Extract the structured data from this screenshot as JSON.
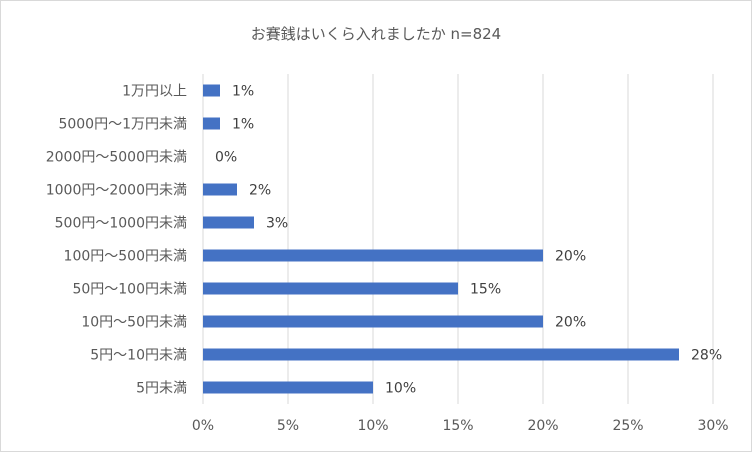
{
  "chart_data": {
    "type": "bar",
    "orientation": "horizontal",
    "title": "お賽銭はいくら入れましたか n=824",
    "categories": [
      "1万円以上",
      "5000円～1万円未満",
      "2000円～5000円未満",
      "1000円～2000円未満",
      "500円～1000円未満",
      "100円～500円未満",
      "50円～100円未満",
      "10円～50円未満",
      "5円～10円未満",
      "5円未満"
    ],
    "values": [
      1,
      1,
      0,
      2,
      3,
      20,
      15,
      20,
      28,
      10
    ],
    "data_labels": [
      "1%",
      "1%",
      "0%",
      "2%",
      "3%",
      "20%",
      "15%",
      "20%",
      "28%",
      "10%"
    ],
    "x_ticks": [
      "0%",
      "5%",
      "10%",
      "15%",
      "20%",
      "25%",
      "30%"
    ],
    "xlim": [
      0,
      30
    ],
    "xlabel": "",
    "ylabel": "",
    "grid": "vertical",
    "legend": "none",
    "colors": {
      "bar": "#4472c4",
      "grid": "#d9d9d9",
      "text": "#595959"
    }
  }
}
